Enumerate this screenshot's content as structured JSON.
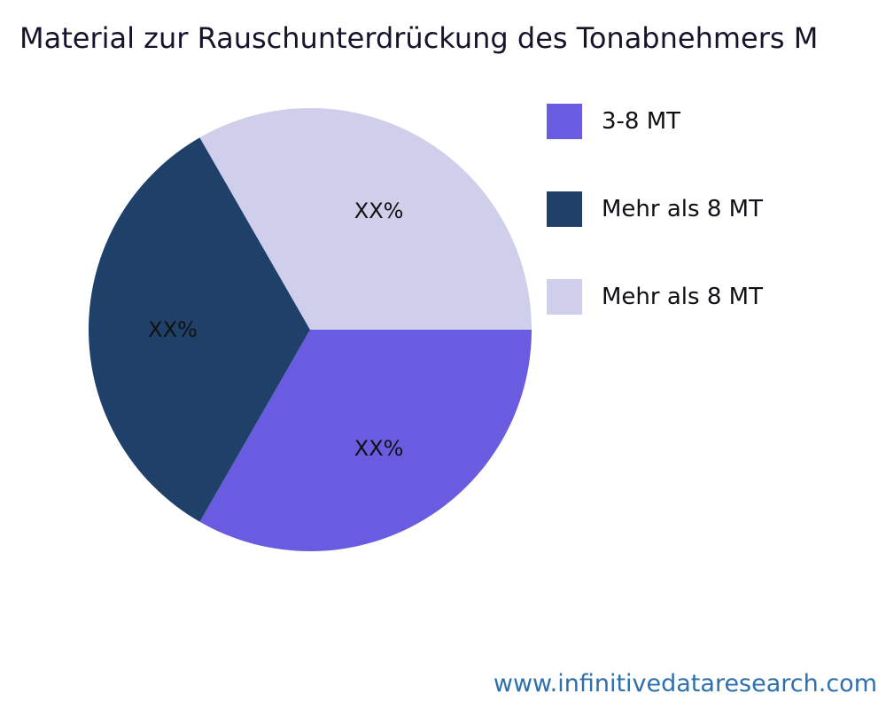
{
  "footer": {
    "url": "www.infinitivedataresearch.com",
    "color": "#2e6fad"
  },
  "chart_data": {
    "type": "pie",
    "title": "Material zur Rauschunterdrückung des Tonabnehmers M",
    "legend_position": "right",
    "start_angle_deg": 0,
    "direction": "clockwise",
    "label_radius_ratio": 0.62,
    "slices": [
      {
        "label": "3-8 MT",
        "display_label": "XX%",
        "value": 33.3,
        "color": "#6a5ce0"
      },
      {
        "label": "Mehr als 8 MT",
        "display_label": "XX%",
        "value": 33.4,
        "color": "#1f4068"
      },
      {
        "label": "Mehr als 8 MT",
        "display_label": "XX%",
        "value": 33.3,
        "color": "#cfceeb"
      }
    ]
  }
}
